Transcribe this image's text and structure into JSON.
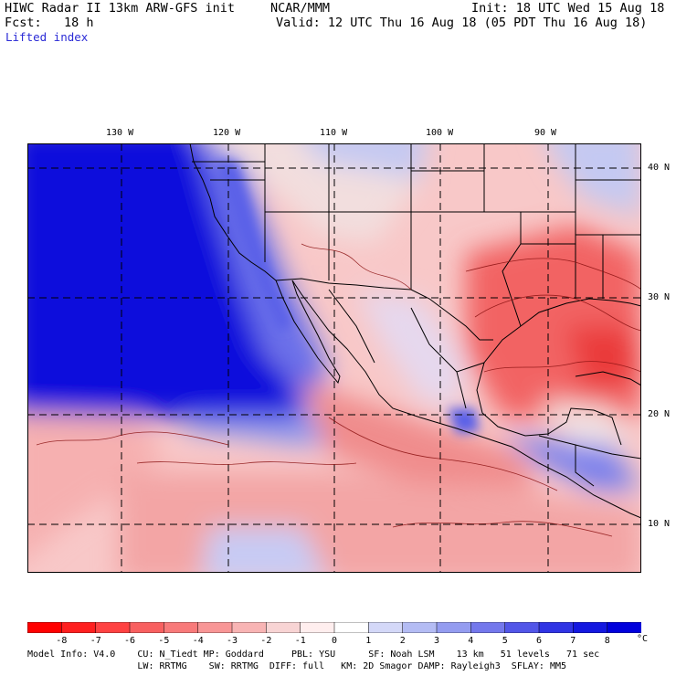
{
  "header": {
    "line1_left": "HIWC Radar II 13km ARW-GFS init",
    "line1_mid": "NCAR/MMM",
    "line1_right": "Init: 18 UTC Wed 15 Aug 18",
    "line2_left": "Fcst:   18 h",
    "line2_right": "Valid: 12 UTC Thu 16 Aug 18 (05 PDT Thu 16 Aug 18)",
    "field": "Lifted index"
  },
  "lon_labels": [
    "130 W",
    "120 W",
    "110 W",
    "100 W",
    "90 W"
  ],
  "lat_labels": [
    "40 N",
    "30 N",
    "20 N",
    "10 N"
  ],
  "colorbar": {
    "ticks": [
      "-8",
      "-7",
      "-6",
      "-5",
      "-4",
      "-3",
      "-2",
      "-1",
      "0",
      "1",
      "2",
      "3",
      "4",
      "5",
      "6",
      "7",
      "8"
    ],
    "unit": "°C",
    "colors": [
      "#ff0000",
      "#ff1f1f",
      "#ff4242",
      "#f86060",
      "#f87a7a",
      "#f89696",
      "#f8b4b4",
      "#f8d4d4",
      "#ffeeee",
      "#ffffff",
      "#d4d8f8",
      "#b4bcf4",
      "#949cf0",
      "#7478ec",
      "#5256e8",
      "#3034e4",
      "#1418e0",
      "#0000dc"
    ]
  },
  "footer": {
    "line1": "Model Info: V4.0    CU: N_Tiedt MP: Goddard     PBL: YSU      SF: Noah LSM    13 km   51 levels   71 sec",
    "line2": "                    LW: RRTMG    SW: RRTMG  DIFF: full   KM: 2D Smagor DAMP: Rayleigh3  SFLAY: MM5"
  },
  "colors": {
    "map_border": "#000000",
    "grid": "#000000",
    "label_blue": "#2b2bd6"
  }
}
